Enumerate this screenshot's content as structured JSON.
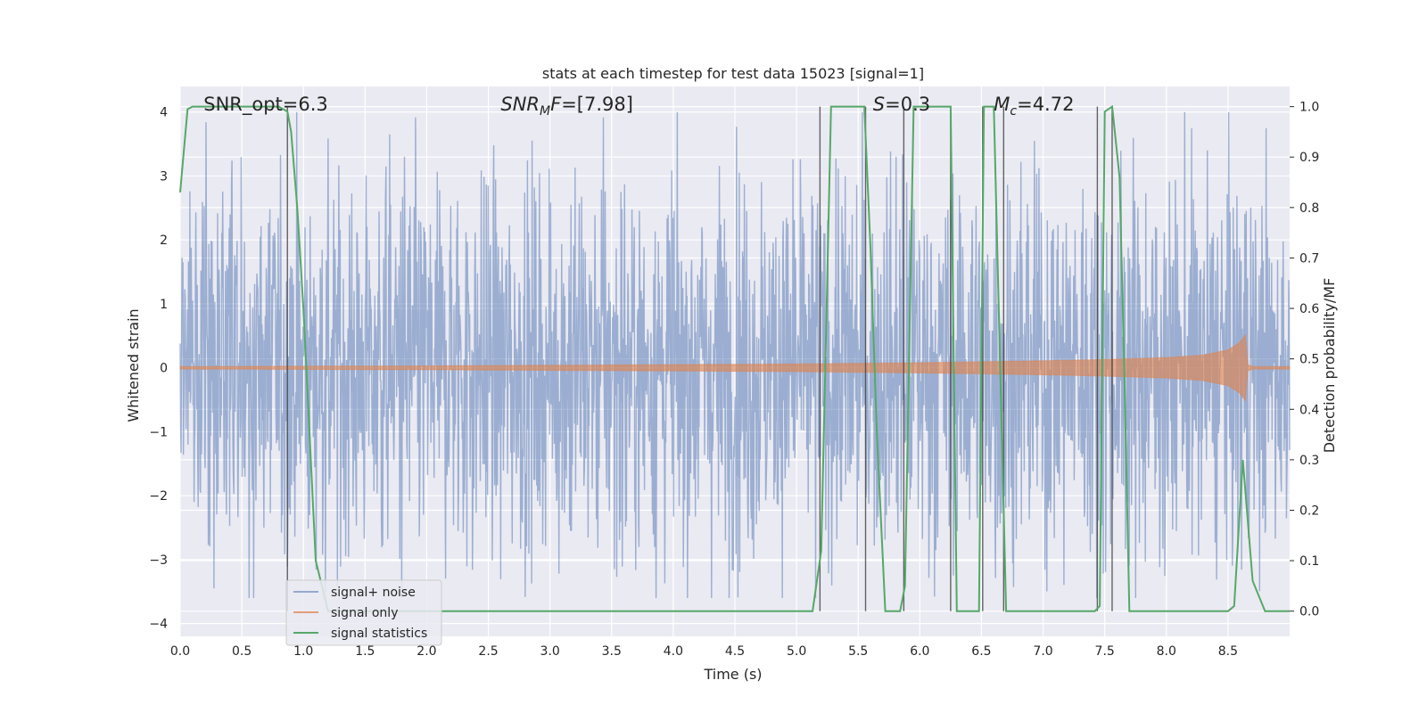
{
  "chart_data": {
    "type": "line",
    "title": "stats at each timestep for test data 15023 [signal=1]",
    "xlabel": "Time (s)",
    "ylabel_left": "Whitened strain",
    "ylabel_right": "Detection probability/MF",
    "xlim": [
      0,
      9
    ],
    "ylim_left": [
      -4.2,
      4.4
    ],
    "ylim_right": [
      -0.05,
      1.04
    ],
    "x_ticks": [
      "0.0",
      "0.5",
      "1.0",
      "1.5",
      "2.0",
      "2.5",
      "3.0",
      "3.5",
      "4.0",
      "4.5",
      "5.0",
      "5.5",
      "6.0",
      "6.5",
      "7.0",
      "7.5",
      "8.0",
      "8.5"
    ],
    "y_ticks_left": [
      "−4",
      "−3",
      "−2",
      "−1",
      "0",
      "1",
      "2",
      "3",
      "4"
    ],
    "y_ticks_right": [
      "0.0",
      "0.1",
      "0.2",
      "0.3",
      "0.4",
      "0.5",
      "0.6",
      "0.7",
      "0.8",
      "0.9",
      "1.0"
    ],
    "grid": true,
    "legend_position": "lower-left",
    "annotations": [
      {
        "text": "SNR_opt=6.3",
        "x": 0.19
      },
      {
        "text": "SNR_MF=[7.98]",
        "x": 2.6
      },
      {
        "text": "S=0.3",
        "x": 5.62
      },
      {
        "text": "M_c=4.72",
        "x": 6.6
      }
    ],
    "series": [
      {
        "name": "signal+ noise",
        "color": "#4c72b0",
        "noise_band_sigma": 1.0,
        "peak_max": 4.0,
        "peak_min": -3.6
      },
      {
        "name": "signal only",
        "color": "#dd8452",
        "envelope": {
          "t": [
            0.0,
            2.0,
            4.0,
            5.0,
            6.0,
            7.0,
            7.5,
            8.0,
            8.3,
            8.5,
            8.6,
            8.65,
            8.66,
            8.7,
            9.0
          ],
          "amplitude": [
            0.02,
            0.03,
            0.05,
            0.06,
            0.08,
            0.11,
            0.13,
            0.16,
            0.2,
            0.28,
            0.4,
            0.55,
            0.05,
            0.02,
            0.02
          ]
        }
      },
      {
        "name": "signal statistics",
        "color": "#55a868",
        "x": [
          0.0,
          0.06,
          0.1,
          0.2,
          0.5,
          0.8,
          0.87,
          0.9,
          0.95,
          1.0,
          1.05,
          1.1,
          1.2,
          1.5,
          2.0,
          3.0,
          4.0,
          5.0,
          5.13,
          5.2,
          5.28,
          5.55,
          5.6,
          5.65,
          5.72,
          5.84,
          5.88,
          5.95,
          6.25,
          6.3,
          6.48,
          6.52,
          6.6,
          6.7,
          6.75,
          6.8,
          7.0,
          7.42,
          7.46,
          7.5,
          7.56,
          7.62,
          7.66,
          7.7,
          8.0,
          8.5,
          8.55,
          8.62,
          8.7,
          8.8,
          9.0
        ],
        "y": [
          0.83,
          0.995,
          1.0,
          1.0,
          1.0,
          1.0,
          0.99,
          0.95,
          0.8,
          0.6,
          0.35,
          0.1,
          0.0,
          0.0,
          0.0,
          0.0,
          0.0,
          0.0,
          0.0,
          0.12,
          1.0,
          1.0,
          0.72,
          0.36,
          0.0,
          0.0,
          0.05,
          1.0,
          1.0,
          0.0,
          0.0,
          1.0,
          1.0,
          0.0,
          0.0,
          0.0,
          0.0,
          0.0,
          0.01,
          0.99,
          1.0,
          0.86,
          0.46,
          0.0,
          0.0,
          0.0,
          0.01,
          0.3,
          0.06,
          0.0,
          0.0
        ]
      }
    ],
    "marker_lines": [
      0.87,
      5.19,
      5.56,
      5.87,
      6.25,
      6.51,
      6.68,
      7.44,
      7.56
    ]
  }
}
